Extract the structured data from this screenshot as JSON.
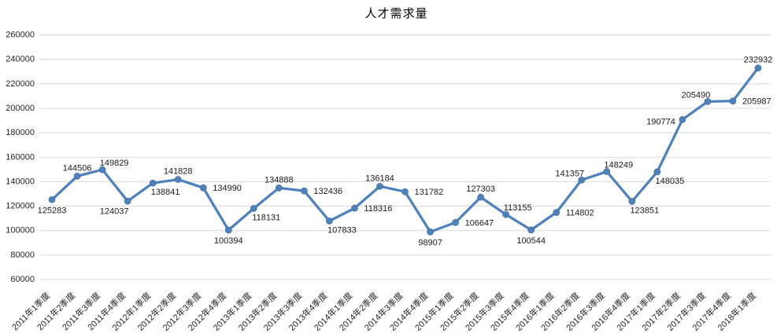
{
  "chart": {
    "title": "人才需求量"
  },
  "chart_data": {
    "type": "line",
    "title": "人才需求量",
    "categories": [
      "2011年1季度",
      "2011年2季度",
      "2011年3季度",
      "2011年4季度",
      "2012年1季度",
      "2012年2季度",
      "2012年3季度",
      "2012年4季度",
      "2013年1季度",
      "2013年2季度",
      "2013年3季度",
      "2013年4季度",
      "2014年1季度",
      "2014年2季度",
      "2014年3季度",
      "2014年4季度",
      "2015年1季度",
      "2015年2季度",
      "2015年3季度",
      "2015年4季度",
      "2016年1季度",
      "2016年2季度",
      "2016年3季度",
      "2016年4季度",
      "2017年1季度",
      "2017年2季度",
      "2017年3季度",
      "2017年4季度",
      "2018年1季度"
    ],
    "values": [
      125283,
      144506,
      149829,
      124037,
      138841,
      141828,
      134990,
      100394,
      118131,
      134888,
      132436,
      107833,
      118316,
      136184,
      131782,
      98907,
      106647,
      127303,
      113155,
      100544,
      114802,
      141357,
      148249,
      123851,
      148035,
      190774,
      205490,
      205987,
      232932
    ],
    "data_labels": true,
    "label_placements": [
      "below",
      "above",
      "above-right",
      "below-left",
      "below-right",
      "above",
      "right",
      "below",
      "below-right",
      "above",
      "right",
      "below-right",
      "right",
      "above",
      "right",
      "below",
      "right",
      "above",
      "above-right",
      "below",
      "right",
      "above-left",
      "above-right",
      "below-right",
      "below-right",
      "left",
      "above-left",
      "right",
      "above"
    ],
    "ylim": [
      60000,
      260000
    ],
    "ytick_step": 20000,
    "ytick_labels": [
      "60000",
      "80000",
      "100000",
      "120000",
      "140000",
      "160000",
      "180000",
      "200000",
      "220000",
      "240000",
      "260000"
    ],
    "xlabel": "",
    "ylabel": "",
    "grid": true,
    "legend": false,
    "colors": {
      "line": "#4F81BD",
      "marker_fill": "#4F81BD",
      "marker_border": "#44709F",
      "gridline": "#D9D9D9",
      "axis_text": "#262626",
      "label_text": "#1A1A1A",
      "background": "#FFFFFF"
    }
  }
}
